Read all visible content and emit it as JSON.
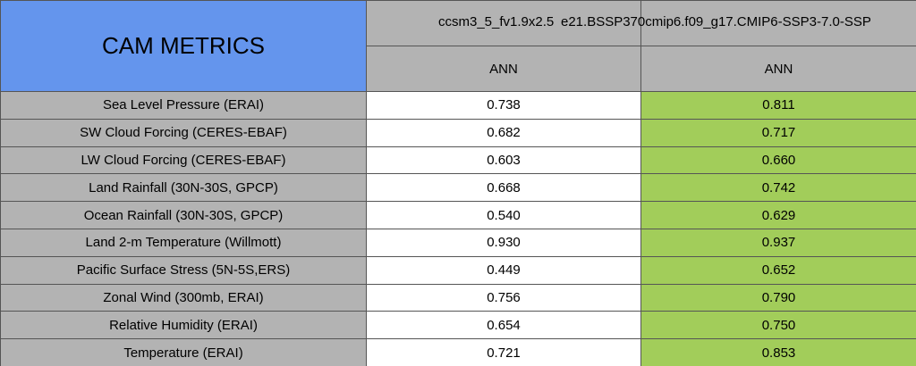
{
  "header": {
    "title": "CAM METRICS",
    "columns": [
      "ccsm3_5_fv1.9x2.5",
      "e21.BSSP370cmip6.f09_g17.CMIP6-SSP3-7.0-SSP"
    ],
    "periods": [
      "ANN",
      "ANN"
    ]
  },
  "table": {
    "rows": [
      [
        "Sea Level Pressure (ERAI)",
        "0.738",
        "0.811"
      ],
      [
        "SW Cloud Forcing (CERES-EBAF)",
        "0.682",
        "0.717"
      ],
      [
        "LW Cloud Forcing (CERES-EBAF)",
        "0.603",
        "0.660"
      ],
      [
        "Land Rainfall (30N-30S, GPCP)",
        "0.668",
        "0.742"
      ],
      [
        "Ocean Rainfall (30N-30S, GPCP)",
        "0.540",
        "0.629"
      ],
      [
        "Land 2-m Temperature (Willmott)",
        "0.930",
        "0.937"
      ],
      [
        "Pacific Surface Stress (5N-5S,ERS)",
        "0.449",
        "0.652"
      ],
      [
        "Zonal Wind (300mb, ERAI)",
        "0.756",
        "0.790"
      ],
      [
        "Relative Humidity (ERAI)",
        "0.654",
        "0.750"
      ],
      [
        "Temperature (ERAI)",
        "0.721",
        "0.853"
      ]
    ]
  }
}
